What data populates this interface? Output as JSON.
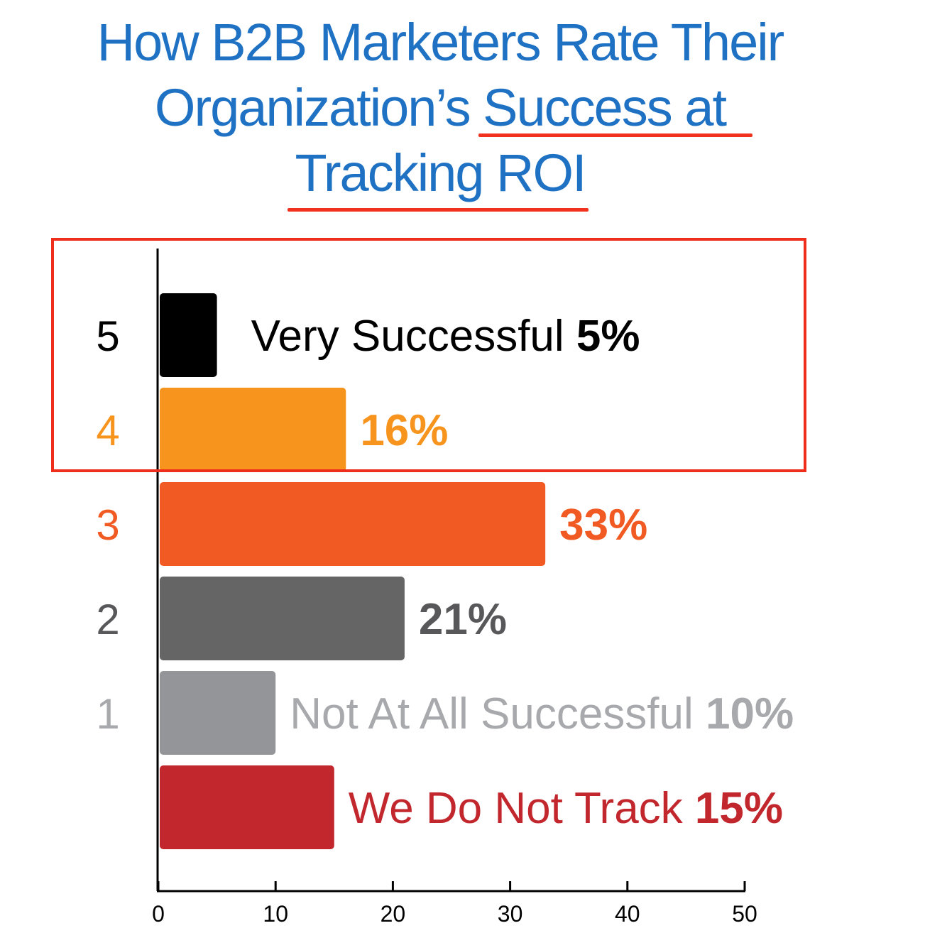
{
  "title": {
    "line1": "How B2B Marketers Rate Their",
    "line2_prefix": "Organization’s ",
    "line2_highlight": "Success at",
    "line3_highlight": "Tracking ROI"
  },
  "colors": {
    "title": "#1f72c3",
    "highlight": "#ee2d1a"
  },
  "chart_data": {
    "type": "bar",
    "orientation": "horizontal",
    "xlim": [
      0,
      50
    ],
    "x_ticks": [
      "0",
      "10",
      "20",
      "30",
      "40",
      "50"
    ],
    "bars": [
      {
        "rating": "5",
        "value": 5,
        "label": "Very Successful",
        "value_label": "5%",
        "color": "#000000",
        "label_color": "#000000"
      },
      {
        "rating": "4",
        "value": 16,
        "label": "",
        "value_label": "16%",
        "color": "#f7941d",
        "label_color": "#f7941d"
      },
      {
        "rating": "3",
        "value": 33,
        "label": "",
        "value_label": "33%",
        "color": "#f15a22",
        "label_color": "#f15a22"
      },
      {
        "rating": "2",
        "value": 21,
        "label": "",
        "value_label": "21%",
        "color": "#656566",
        "label_color": "#58585a"
      },
      {
        "rating": "1",
        "value": 10,
        "label": "Not At All Successful",
        "value_label": "10%",
        "color": "#939598",
        "label_color": "#a7a9ac"
      },
      {
        "rating": "",
        "value": 15,
        "label": "We Do Not Track",
        "value_label": "15%",
        "color": "#c1272d",
        "label_color": "#c1272d"
      }
    ]
  }
}
